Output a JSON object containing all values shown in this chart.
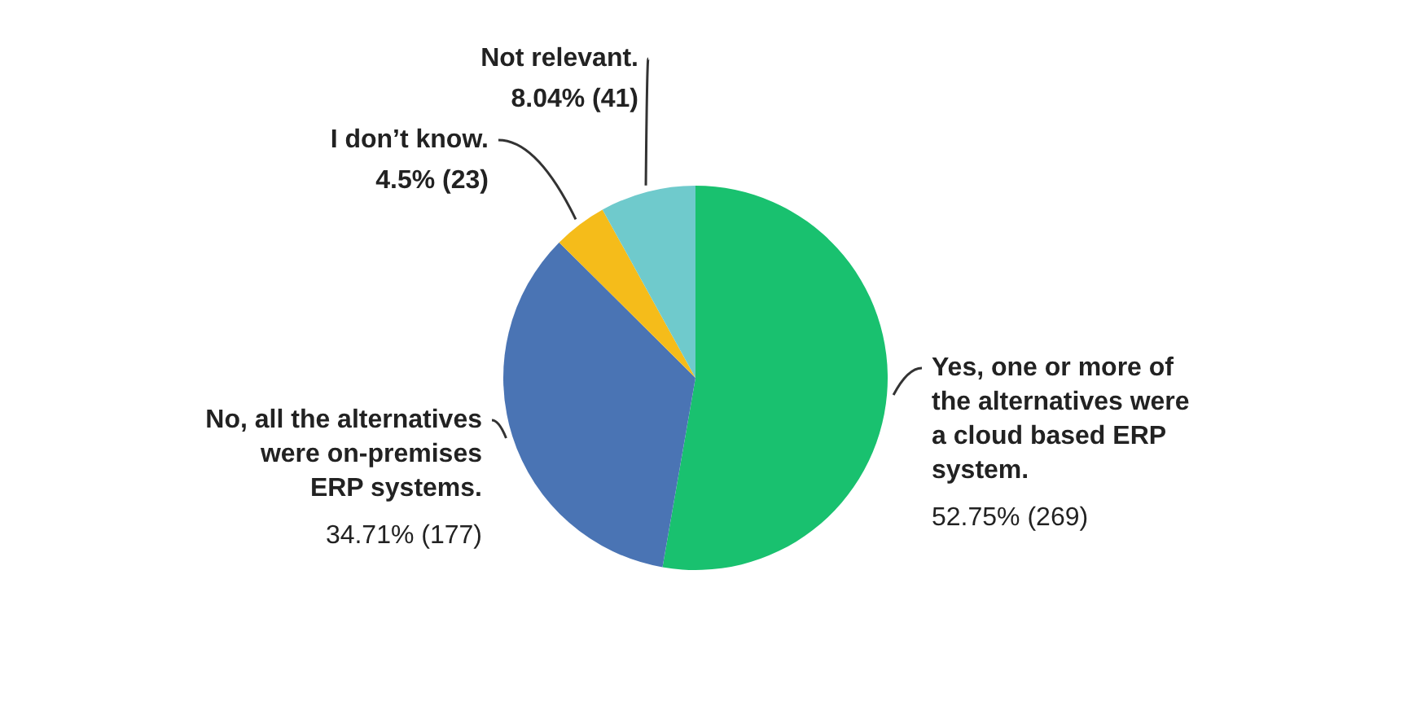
{
  "chart_data": {
    "type": "pie",
    "categories": [
      "Yes, one or more of the alternatives were a cloud based ERP system.",
      "No, all the alternatives  were on-premises ERP systems.",
      "I don’t know.",
      "Not relevant."
    ],
    "values": [
      269,
      177,
      23,
      41
    ],
    "value_labels": [
      "52.75% (269)",
      "34.71% (177)",
      "4.5% (23)",
      "8.04% (41)"
    ],
    "colors": [
      "#19c16f",
      "#4a74b4",
      "#f5bc1a",
      "#6fcacc"
    ],
    "legend": false
  }
}
